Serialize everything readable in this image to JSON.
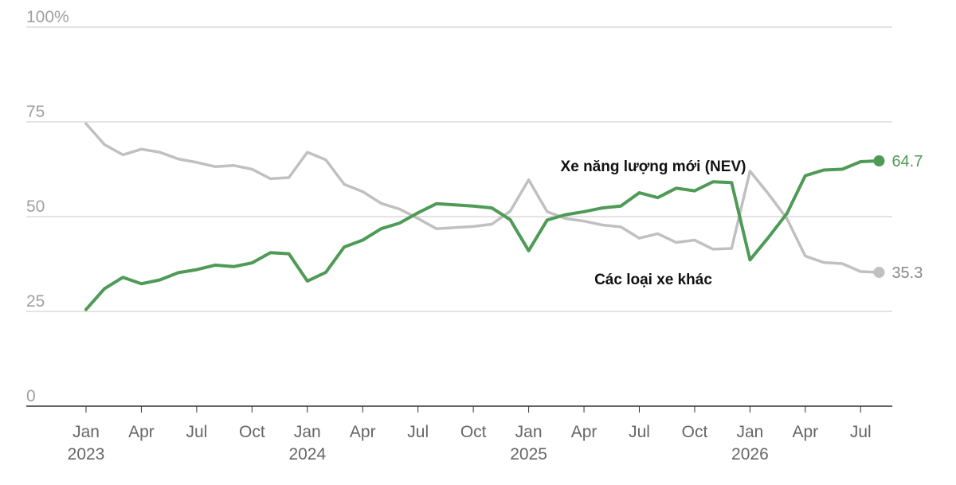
{
  "chart_data": {
    "type": "line",
    "ylim": [
      0,
      100
    ],
    "y_ticks": [
      0,
      25,
      50,
      75,
      100
    ],
    "y_tick_labels": [
      "0",
      "25",
      "50",
      "75",
      "100%"
    ],
    "grid": true,
    "x_ticks": [
      {
        "x": "2023-01",
        "month": "Jan",
        "year": "2023"
      },
      {
        "x": "2023-04",
        "month": "Apr",
        "year": ""
      },
      {
        "x": "2023-07",
        "month": "Jul",
        "year": ""
      },
      {
        "x": "2023-10",
        "month": "Oct",
        "year": ""
      },
      {
        "x": "2024-01",
        "month": "Jan",
        "year": "2024"
      },
      {
        "x": "2024-04",
        "month": "Apr",
        "year": ""
      },
      {
        "x": "2024-07",
        "month": "Jul",
        "year": ""
      },
      {
        "x": "2024-10",
        "month": "Oct",
        "year": ""
      },
      {
        "x": "2025-01",
        "month": "Jan",
        "year": "2025"
      },
      {
        "x": "2025-04",
        "month": "Apr",
        "year": ""
      },
      {
        "x": "2025-07",
        "month": "Jul",
        "year": ""
      },
      {
        "x": "2025-10",
        "month": "Oct",
        "year": ""
      },
      {
        "x": "2026-01",
        "month": "Jan",
        "year": "2026"
      },
      {
        "x": "2026-04",
        "month": "Apr",
        "year": ""
      },
      {
        "x": "2026-07",
        "month": "Jul",
        "year": ""
      }
    ],
    "x": [
      "2023-01",
      "2023-02",
      "2023-03",
      "2023-04",
      "2023-05",
      "2023-06",
      "2023-07",
      "2023-08",
      "2023-09",
      "2023-10",
      "2023-11",
      "2023-12",
      "2024-01",
      "2024-02",
      "2024-03",
      "2024-04",
      "2024-05",
      "2024-06",
      "2024-07",
      "2024-08",
      "2024-09",
      "2024-10",
      "2024-11",
      "2024-12",
      "2025-01",
      "2025-02",
      "2025-03",
      "2025-04",
      "2025-05",
      "2025-06",
      "2025-07",
      "2025-08",
      "2025-09",
      "2025-10",
      "2025-11",
      "2025-12",
      "2026-01",
      "2026-02",
      "2026-03",
      "2026-04",
      "2026-05",
      "2026-06",
      "2026-07",
      "2026-08"
    ],
    "series": [
      {
        "name": "Xe năng lượng mới (NEV)",
        "color": "#4e9a56",
        "end_label": "64.7",
        "values": [
          25.5,
          31.0,
          34.0,
          32.3,
          33.3,
          35.2,
          36.0,
          37.2,
          36.8,
          37.8,
          40.5,
          40.2,
          33.0,
          35.3,
          42.0,
          43.8,
          46.8,
          48.3,
          51.0,
          53.4,
          53.1,
          52.8,
          52.3,
          49.2,
          41.0,
          49.1,
          50.5,
          51.3,
          52.3,
          52.8,
          56.3,
          55.0,
          57.5,
          56.8,
          59.2,
          59.0,
          38.6,
          44.5,
          50.8,
          60.8,
          62.3,
          62.5,
          64.5,
          64.7
        ]
      },
      {
        "name": "Các loại xe khác",
        "color": "#c0c0c0",
        "end_label": "35.3",
        "values": [
          74.5,
          69.0,
          66.3,
          67.8,
          67.0,
          65.2,
          64.3,
          63.2,
          63.5,
          62.5,
          60.0,
          60.3,
          67.0,
          65.0,
          58.5,
          56.6,
          53.5,
          52.0,
          49.5,
          46.8,
          47.1,
          47.4,
          48.0,
          51.4,
          59.7,
          51.3,
          49.5,
          48.8,
          47.8,
          47.3,
          44.3,
          45.5,
          43.2,
          43.8,
          41.4,
          41.6,
          62.0,
          56.0,
          49.5,
          39.6,
          37.9,
          37.6,
          35.5,
          35.3
        ]
      }
    ]
  }
}
